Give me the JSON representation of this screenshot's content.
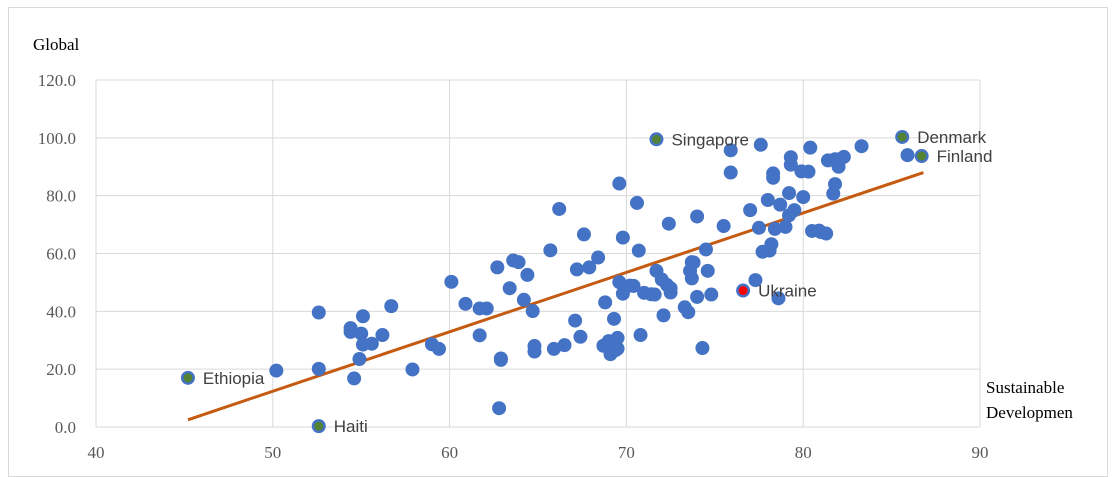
{
  "chart_data": {
    "type": "scatter",
    "title": "",
    "xlabel": "Sustainable Developmen",
    "ylabel": "Global",
    "xlim": [
      40,
      90
    ],
    "ylim": [
      0,
      120
    ],
    "x_ticks": [
      "40",
      "50",
      "60",
      "70",
      "80",
      "90"
    ],
    "y_ticks": [
      "0.0",
      "20.0",
      "40.0",
      "60.0",
      "80.0",
      "100.0",
      "120.0"
    ],
    "grid": true,
    "colors": {
      "points": "#4472c4",
      "highlight_green": "#548235",
      "highlight_red": "#ff0000",
      "trendline": "#c55a11",
      "grid": "#d9d9d9"
    },
    "trendline": {
      "x": [
        45.2,
        86.8
      ],
      "y": [
        2.5,
        88.0
      ]
    },
    "labeled_points": [
      {
        "label": "Ethiopia",
        "x": 45.2,
        "y": 17.0,
        "color": "green"
      },
      {
        "label": "Haiti",
        "x": 52.6,
        "y": 0.3,
        "color": "green"
      },
      {
        "label": "Singapore",
        "x": 71.7,
        "y": 99.5,
        "color": "green"
      },
      {
        "label": "Denmark",
        "x": 85.6,
        "y": 100.3,
        "color": "green"
      },
      {
        "label": "Finland",
        "x": 86.7,
        "y": 93.7,
        "color": "green"
      },
      {
        "label": "Ukraine",
        "x": 76.6,
        "y": 47.2,
        "color": "red"
      }
    ],
    "points": [
      [
        50.2,
        19.5
      ],
      [
        52.6,
        20.1
      ],
      [
        52.6,
        39.6
      ],
      [
        54.4,
        34.2
      ],
      [
        54.4,
        32.9
      ],
      [
        54.6,
        16.8
      ],
      [
        54.9,
        23.5
      ],
      [
        55.0,
        32.3
      ],
      [
        55.1,
        38.3
      ],
      [
        55.1,
        28.5
      ],
      [
        55.6,
        28.8
      ],
      [
        56.2,
        31.8
      ],
      [
        56.7,
        41.8
      ],
      [
        57.9,
        19.9
      ],
      [
        59.0,
        28.6
      ],
      [
        59.4,
        27.0
      ],
      [
        60.1,
        50.2
      ],
      [
        60.9,
        42.6
      ],
      [
        61.7,
        31.7
      ],
      [
        61.7,
        41.0
      ],
      [
        62.1,
        41.0
      ],
      [
        62.7,
        55.2
      ],
      [
        62.8,
        6.5
      ],
      [
        62.9,
        23.7
      ],
      [
        62.9,
        23.2
      ],
      [
        63.4,
        48.0
      ],
      [
        63.6,
        57.6
      ],
      [
        63.9,
        57.0
      ],
      [
        64.2,
        44.0
      ],
      [
        64.4,
        52.6
      ],
      [
        64.7,
        40.1
      ],
      [
        64.8,
        28.0
      ],
      [
        64.8,
        26.1
      ],
      [
        65.7,
        61.1
      ],
      [
        65.9,
        27.0
      ],
      [
        66.2,
        75.4
      ],
      [
        66.5,
        28.3
      ],
      [
        67.1,
        36.8
      ],
      [
        67.2,
        54.5
      ],
      [
        67.4,
        31.2
      ],
      [
        67.6,
        66.6
      ],
      [
        67.9,
        55.2
      ],
      [
        68.4,
        58.6
      ],
      [
        68.7,
        28.1
      ],
      [
        68.8,
        43.1
      ],
      [
        69.0,
        29.7
      ],
      [
        69.1,
        25.2
      ],
      [
        69.3,
        37.4
      ],
      [
        69.4,
        26.6
      ],
      [
        69.5,
        30.8
      ],
      [
        69.5,
        27.1
      ],
      [
        69.6,
        84.2
      ],
      [
        69.6,
        50.1
      ],
      [
        69.8,
        65.5
      ],
      [
        69.8,
        46.1
      ],
      [
        70.2,
        48.9
      ],
      [
        70.4,
        48.8
      ],
      [
        70.6,
        77.5
      ],
      [
        70.7,
        61.0
      ],
      [
        70.8,
        31.8
      ],
      [
        71.0,
        46.4
      ],
      [
        71.4,
        45.9
      ],
      [
        71.6,
        45.8
      ],
      [
        71.7,
        54.0
      ],
      [
        72.0,
        51.0
      ],
      [
        72.1,
        38.6
      ],
      [
        72.3,
        49.1
      ],
      [
        72.4,
        70.3
      ],
      [
        72.5,
        48.0
      ],
      [
        72.5,
        46.5
      ],
      [
        73.3,
        41.4
      ],
      [
        73.5,
        39.7
      ],
      [
        73.6,
        54.0
      ],
      [
        73.7,
        51.4
      ],
      [
        73.7,
        57.0
      ],
      [
        73.8,
        56.9
      ],
      [
        74.0,
        45.0
      ],
      [
        74.0,
        72.8
      ],
      [
        74.3,
        27.3
      ],
      [
        74.5,
        61.4
      ],
      [
        74.6,
        54.0
      ],
      [
        74.8,
        45.8
      ],
      [
        75.5,
        69.5
      ],
      [
        75.9,
        88.0
      ],
      [
        75.9,
        95.7
      ],
      [
        77.0,
        75.0
      ],
      [
        77.3,
        50.8
      ],
      [
        77.5,
        68.9
      ],
      [
        77.6,
        97.6
      ],
      [
        77.7,
        60.6
      ],
      [
        78.0,
        78.5
      ],
      [
        78.1,
        61.0
      ],
      [
        78.2,
        63.2
      ],
      [
        78.3,
        87.7
      ],
      [
        78.3,
        86.2
      ],
      [
        78.4,
        68.5
      ],
      [
        78.6,
        44.5
      ],
      [
        78.7,
        76.9
      ],
      [
        79.0,
        69.2
      ],
      [
        79.2,
        80.9
      ],
      [
        79.2,
        73.2
      ],
      [
        79.3,
        93.3
      ],
      [
        79.3,
        90.7
      ],
      [
        79.5,
        75.0
      ],
      [
        79.9,
        88.4
      ],
      [
        80.0,
        79.5
      ],
      [
        80.3,
        88.3
      ],
      [
        80.4,
        96.6
      ],
      [
        80.5,
        67.8
      ],
      [
        80.9,
        67.9
      ],
      [
        81.0,
        67.4
      ],
      [
        81.4,
        92.2
      ],
      [
        81.7,
        80.7
      ],
      [
        81.8,
        84.0
      ],
      [
        81.8,
        92.6
      ],
      [
        82.0,
        90.0
      ],
      [
        82.1,
        92.7
      ],
      [
        82.3,
        93.4
      ],
      [
        83.3,
        97.1
      ],
      [
        85.9,
        94.0
      ],
      [
        81.3,
        66.9
      ]
    ]
  }
}
